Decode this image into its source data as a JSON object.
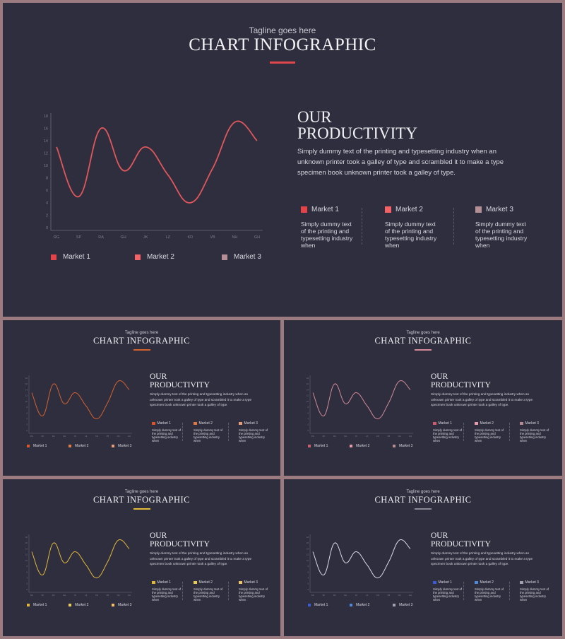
{
  "common": {
    "tagline": "Tagline goes here",
    "title": "CHART INFOGRAPHIC",
    "heading_line1": "OUR",
    "heading_line2": "PRODUCTIVITY",
    "body": "Simply dummy text of the printing and typesetting industry when an unknown printer took a galley of type and scrambled it to make a type specimen book unknown printer took a galley of type.",
    "market_desc": "Simply dummy text of the printing and typesetting industry when",
    "markets": [
      "Market 1",
      "Market 2",
      "Market 3"
    ],
    "legend": [
      "Market 1",
      "Market 2",
      "Market 3"
    ]
  },
  "chart_data": {
    "type": "line",
    "x": [
      "RG",
      "SP",
      "RA",
      "GH",
      "JK",
      "LZ",
      "KD",
      "VB",
      "NH",
      "GH"
    ],
    "y_ticks": [
      0,
      2,
      4,
      6,
      8,
      10,
      12,
      14,
      16,
      18
    ],
    "ylim": [
      0,
      18
    ],
    "values": [
      13,
      5,
      16,
      9.2,
      13,
      8.5,
      4,
      9.5,
      17,
      14
    ],
    "title": "",
    "xlabel": "",
    "ylabel": ""
  },
  "themes": [
    {
      "line": "#e0575b",
      "accent": "#e0474c",
      "m1": "#e4434a",
      "m2": "#f26266",
      "m3": "#b49096"
    },
    {
      "line": "#d4622e",
      "accent": "#d4622e",
      "m1": "#d9552c",
      "m2": "#e07a45",
      "m3": "#e69c78"
    },
    {
      "line": "#d48a97",
      "accent": "#d48a97",
      "m1": "#c95f6e",
      "m2": "#e79aa8",
      "m3": "#b68a92"
    },
    {
      "line": "#e3b93a",
      "accent": "#e3b93a",
      "m1": "#e3b53b",
      "m2": "#eac85a",
      "m3": "#ecc26a"
    },
    {
      "line": "#dcdce4",
      "accent": "#8a8a96",
      "m1": "#3a5cd0",
      "m2": "#4a8ad8",
      "m3": "#a0a0ae"
    }
  ]
}
